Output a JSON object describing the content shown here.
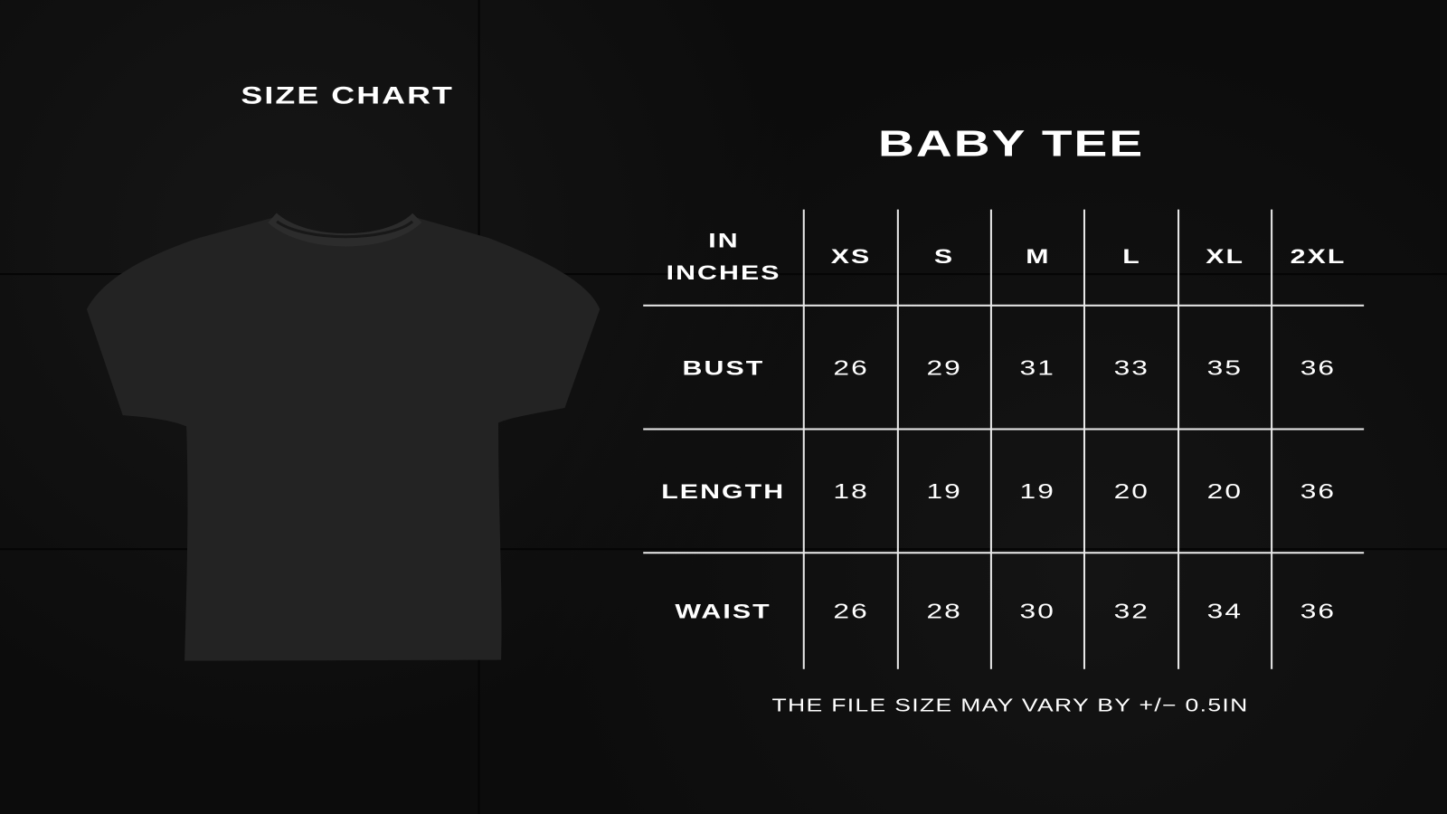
{
  "heading": "SIZE CHART",
  "product_title": "BABY TEE",
  "table": {
    "corner_label": [
      "IN",
      "INCHES"
    ],
    "sizes": [
      "XS",
      "S",
      "M",
      "L",
      "XL",
      "2XL"
    ],
    "rows": [
      {
        "label": "BUST",
        "values": [
          "26",
          "29",
          "31",
          "33",
          "35",
          "36"
        ]
      },
      {
        "label": "LENGTH",
        "values": [
          "18",
          "19",
          "19",
          "20",
          "20",
          "36"
        ]
      },
      {
        "label": "WAIST",
        "values": [
          "26",
          "28",
          "30",
          "32",
          "34",
          "36"
        ]
      }
    ]
  },
  "note": "THE FILE SIZE MAY VARY BY +/− 0.5IN",
  "colors": {
    "background": "#0c0c0c",
    "text": "#ffffff",
    "shirt": "#232323"
  }
}
